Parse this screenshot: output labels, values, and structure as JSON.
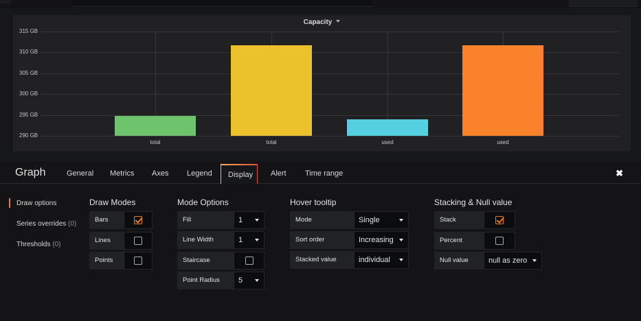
{
  "panel": {
    "title": "Capacity",
    "colors": {
      "total_1": "#6ec46d",
      "total_2": "#ebc22b",
      "used_1": "#54d0e0",
      "used_2": "#f9822b"
    }
  },
  "chart_data": {
    "type": "bar",
    "title": "Capacity",
    "categories": [
      "total",
      "total",
      "used",
      "used"
    ],
    "values": [
      294.8,
      311.7,
      293.9,
      311.7
    ],
    "unit": "GB",
    "yticks": [
      "290 GB",
      "295 GB",
      "300 GB",
      "305 GB",
      "310 GB",
      "315 GB"
    ],
    "ylim": [
      290,
      315
    ],
    "grid": true
  },
  "editor": {
    "title": "Graph",
    "tabs": [
      "General",
      "Metrics",
      "Axes",
      "Legend",
      "Display",
      "Alert",
      "Time range"
    ],
    "active_tab": "Display",
    "close_icon": "close-icon"
  },
  "sidenav": {
    "items": [
      {
        "label": "Draw options",
        "count": ""
      },
      {
        "label": "Series overrides",
        "count": "(0)"
      },
      {
        "label": "Thresholds",
        "count": "(0)"
      }
    ]
  },
  "draw_modes": {
    "title": "Draw Modes",
    "rows": [
      {
        "label": "Bars",
        "checked": true
      },
      {
        "label": "Lines",
        "checked": false
      },
      {
        "label": "Points",
        "checked": false
      }
    ]
  },
  "mode_options": {
    "title": "Mode Options",
    "fill_label": "Fill",
    "fill_value": "1",
    "line_width_label": "Line Width",
    "line_width_value": "1",
    "staircase_label": "Staircase",
    "staircase_checked": false,
    "point_radius_label": "Point Radius",
    "point_radius_value": "5"
  },
  "hover_tooltip": {
    "title": "Hover tooltip",
    "mode_label": "Mode",
    "mode_value": "Single",
    "sort_label": "Sort order",
    "sort_value": "Increasing",
    "stacked_label": "Stacked value",
    "stacked_value": "individual"
  },
  "stacking": {
    "title": "Stacking & Null value",
    "stack_label": "Stack",
    "stack_checked": true,
    "percent_label": "Percent",
    "percent_checked": false,
    "null_label": "Null value",
    "null_value": "null as zero"
  }
}
